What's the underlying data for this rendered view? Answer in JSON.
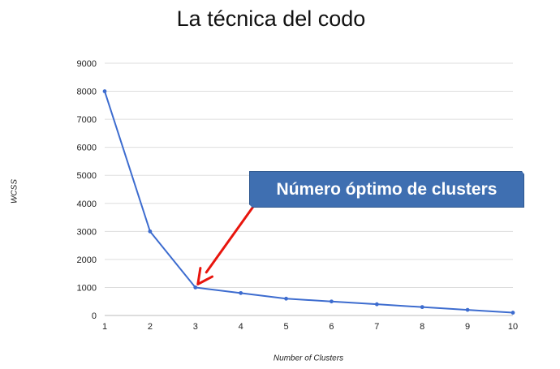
{
  "chart_data": {
    "type": "line",
    "title": "La técnica del codo",
    "xlabel": "Number of Clusters",
    "ylabel": "WCSS",
    "x": [
      1,
      2,
      3,
      4,
      5,
      6,
      7,
      8,
      9,
      10
    ],
    "series": [
      {
        "values": [
          8000,
          3000,
          1000,
          800,
          600,
          500,
          400,
          300,
          200,
          100
        ]
      }
    ],
    "xlim": [
      1,
      10
    ],
    "ylim": [
      0,
      9000
    ],
    "x_ticks": [
      "1",
      "2",
      "3",
      "4",
      "5",
      "6",
      "7",
      "8",
      "9",
      "10"
    ],
    "y_ticks": [
      "0",
      "1000",
      "2000",
      "3000",
      "4000",
      "5000",
      "6000",
      "7000",
      "8000",
      "9000"
    ],
    "grid": true,
    "annotation": {
      "text": "Número óptimo de clusters",
      "points_to_x": 3,
      "points_to_y": 1000
    },
    "colors": {
      "line": "#3d6ccf",
      "arrow": "#e8150d",
      "callout_fill": "#3f6fb1",
      "grid": "#dddddd"
    }
  }
}
